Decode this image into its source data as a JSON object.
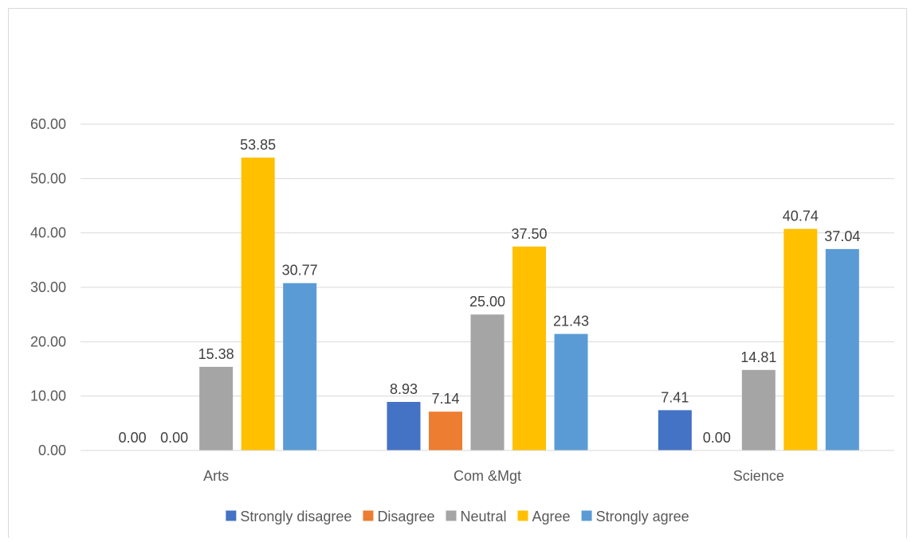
{
  "chart_data": {
    "type": "bar",
    "title": "",
    "xlabel": "",
    "ylabel": "",
    "categories": [
      "Arts",
      "Com &Mgt",
      "Science"
    ],
    "series": [
      {
        "name": "Strongly disagree",
        "color": "#4472C4",
        "values": [
          0.0,
          8.93,
          7.41
        ],
        "labels": [
          "0.00",
          "8.93",
          "7.41"
        ]
      },
      {
        "name": "Disagree",
        "color": "#ED7D31",
        "values": [
          0.0,
          7.14,
          0.0
        ],
        "labels": [
          "0.00",
          "7.14",
          "0.00"
        ]
      },
      {
        "name": "Neutral",
        "color": "#A5A5A5",
        "values": [
          15.38,
          25.0,
          14.81
        ],
        "labels": [
          "15.38",
          "25.00",
          "14.81"
        ]
      },
      {
        "name": "Agree",
        "color": "#FFC000",
        "values": [
          53.85,
          37.5,
          40.74
        ],
        "labels": [
          "53.85",
          "37.50",
          "40.74"
        ]
      },
      {
        "name": "Strongly agree",
        "color": "#5B9BD5",
        "values": [
          30.77,
          21.43,
          37.04
        ],
        "labels": [
          "30.77",
          "21.43",
          "37.04"
        ]
      }
    ],
    "ylim": [
      0,
      60
    ],
    "yticks": [
      "0.00",
      "10.00",
      "20.00",
      "30.00",
      "40.00",
      "50.00",
      "60.00"
    ],
    "grid": true,
    "legend_position": "bottom"
  }
}
